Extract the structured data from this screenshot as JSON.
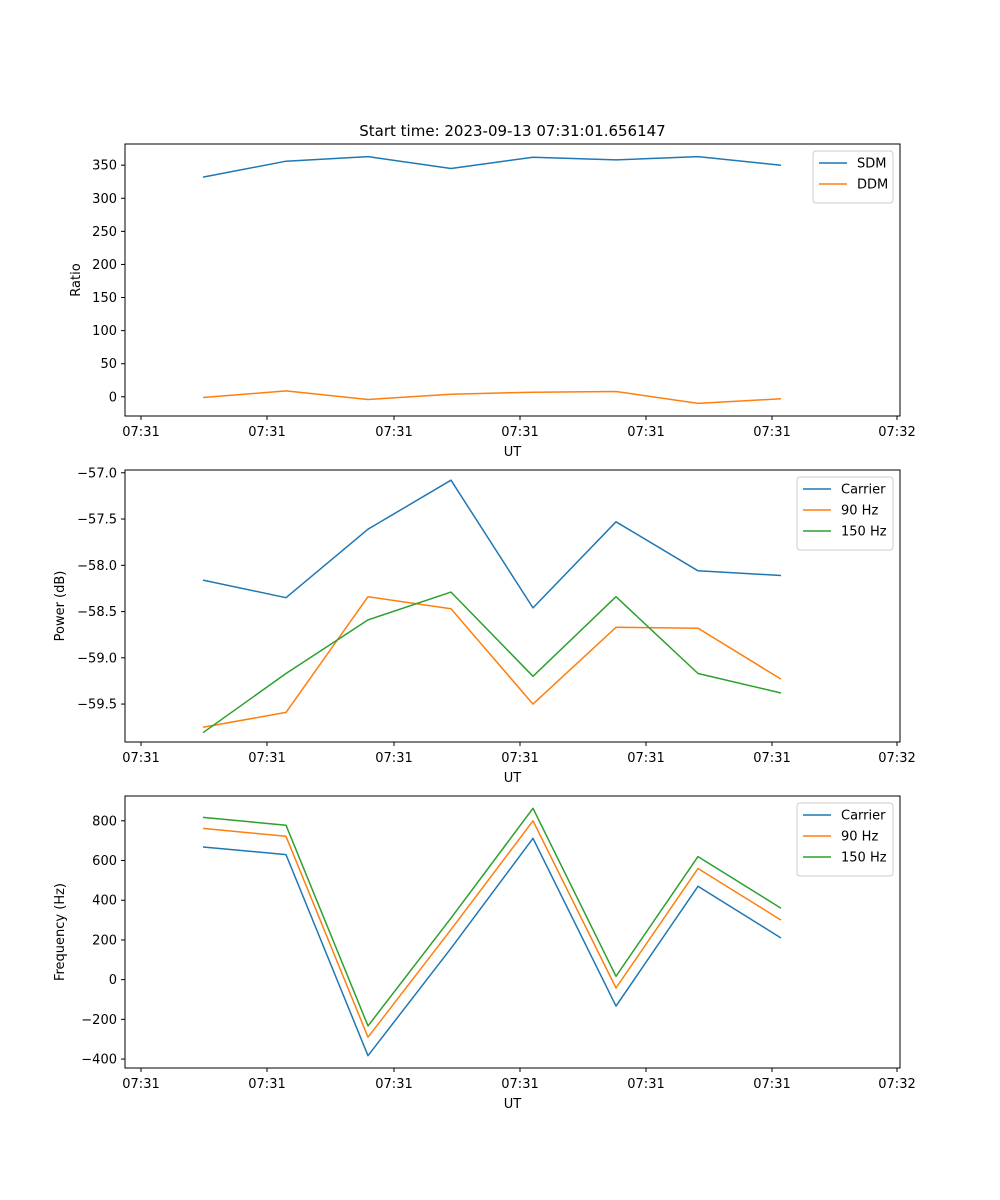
{
  "figure": {
    "title": "Start time: 2023-09-13 07:31:01.656147"
  },
  "chart_data": [
    {
      "type": "line",
      "xlabel": "UT",
      "ylabel": "Ratio",
      "x_tick_labels": [
        "07:31",
        "07:31",
        "07:31",
        "07:31",
        "07:31",
        "07:31",
        "07:32"
      ],
      "y_ticks": [
        0,
        50,
        100,
        150,
        200,
        250,
        300,
        350
      ],
      "ylim": [
        -29,
        382
      ],
      "x": [
        1,
        2,
        3,
        4,
        5,
        6,
        7,
        8
      ],
      "legend": "top-right",
      "series": [
        {
          "name": "SDM",
          "color": "#1f77b4",
          "values": [
            332,
            356,
            363,
            345,
            362,
            358,
            363,
            350
          ]
        },
        {
          "name": "DDM",
          "color": "#ff7f0e",
          "values": [
            -1,
            9,
            -4,
            4,
            7,
            8,
            -10,
            -3
          ]
        }
      ]
    },
    {
      "type": "line",
      "xlabel": "UT",
      "ylabel": "Power (dB)",
      "x_tick_labels": [
        "07:31",
        "07:31",
        "07:31",
        "07:31",
        "07:31",
        "07:31",
        "07:32"
      ],
      "y_ticks": [
        -59.5,
        -59.0,
        -58.5,
        -58.0,
        -57.5,
        -57.0
      ],
      "y_tick_labels": [
        "−59.5",
        "−59.0",
        "−58.5",
        "−58.0",
        "−57.5",
        "−57.0"
      ],
      "ylim": [
        -59.91,
        -56.97
      ],
      "x": [
        1,
        2,
        3,
        4,
        5,
        6,
        7,
        8
      ],
      "legend": "top-right",
      "series": [
        {
          "name": "Carrier",
          "color": "#1f77b4",
          "values": [
            -58.16,
            -58.35,
            -57.61,
            -57.08,
            -58.46,
            -57.53,
            -58.06,
            -58.11
          ]
        },
        {
          "name": "90 Hz",
          "color": "#ff7f0e",
          "values": [
            -59.75,
            -59.59,
            -58.34,
            -58.47,
            -59.5,
            -58.67,
            -58.68,
            -59.23
          ]
        },
        {
          "name": "150 Hz",
          "color": "#2ca02c",
          "values": [
            -59.81,
            -59.17,
            -58.59,
            -58.29,
            -59.2,
            -58.34,
            -59.17,
            -59.38
          ]
        }
      ]
    },
    {
      "type": "line",
      "xlabel": "UT",
      "ylabel": "Frequency (Hz)",
      "x_tick_labels": [
        "07:31",
        "07:31",
        "07:31",
        "07:31",
        "07:31",
        "07:31",
        "07:32"
      ],
      "y_ticks": [
        -400,
        -200,
        0,
        200,
        400,
        600,
        800
      ],
      "y_tick_labels": [
        "−400",
        "−200",
        "0",
        "200",
        "400",
        "600",
        "800"
      ],
      "ylim": [
        -445,
        925
      ],
      "x": [
        1,
        2,
        3,
        4,
        5,
        6,
        7,
        8
      ],
      "legend": "top-right",
      "series": [
        {
          "name": "Carrier",
          "color": "#1f77b4",
          "values": [
            668,
            630,
            -383,
            158,
            712,
            -133,
            470,
            210
          ]
        },
        {
          "name": "90 Hz",
          "color": "#ff7f0e",
          "values": [
            762,
            722,
            -290,
            252,
            800,
            -42,
            560,
            300
          ]
        },
        {
          "name": "150 Hz",
          "color": "#2ca02c",
          "values": [
            817,
            778,
            -233,
            310,
            863,
            17,
            620,
            360
          ]
        }
      ]
    }
  ]
}
